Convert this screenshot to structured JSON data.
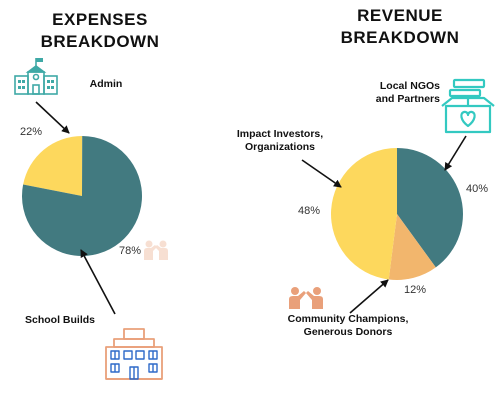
{
  "colors": {
    "teal": "#427A80",
    "yellow": "#FDD85D",
    "orange": "#F2B66D",
    "arrow": "#111111",
    "icon_teal": "#3FA9A6",
    "icon_aqua": "#33C9C1",
    "icon_peach": "#E9A07A",
    "icon_school": "#2E6AC9"
  },
  "icons": {
    "admin": "school-building-icon",
    "ngo": "gift-boxes-heart-icon",
    "community": "people-helping-icon",
    "school_builds": "school-building-icon"
  },
  "chart_data": [
    {
      "type": "pie",
      "title": "EXPENSES\nBREAKDOWN",
      "slices": [
        {
          "label": "Admin",
          "value": 22,
          "color": "#FDD85D"
        },
        {
          "label": "School Builds",
          "value": 78,
          "color": "#427A80"
        }
      ]
    },
    {
      "type": "pie",
      "title": "REVENUE\nBREAKDOWN",
      "slices": [
        {
          "label": "Local NGOs\nand Partners",
          "value": 40,
          "color": "#427A80"
        },
        {
          "label": "Community Champions,\nGenerous Donors",
          "value": 12,
          "color": "#F2B66D"
        },
        {
          "label": "Impact Investors,\nOrganizations",
          "value": 48,
          "color": "#FDD85D"
        }
      ]
    }
  ]
}
